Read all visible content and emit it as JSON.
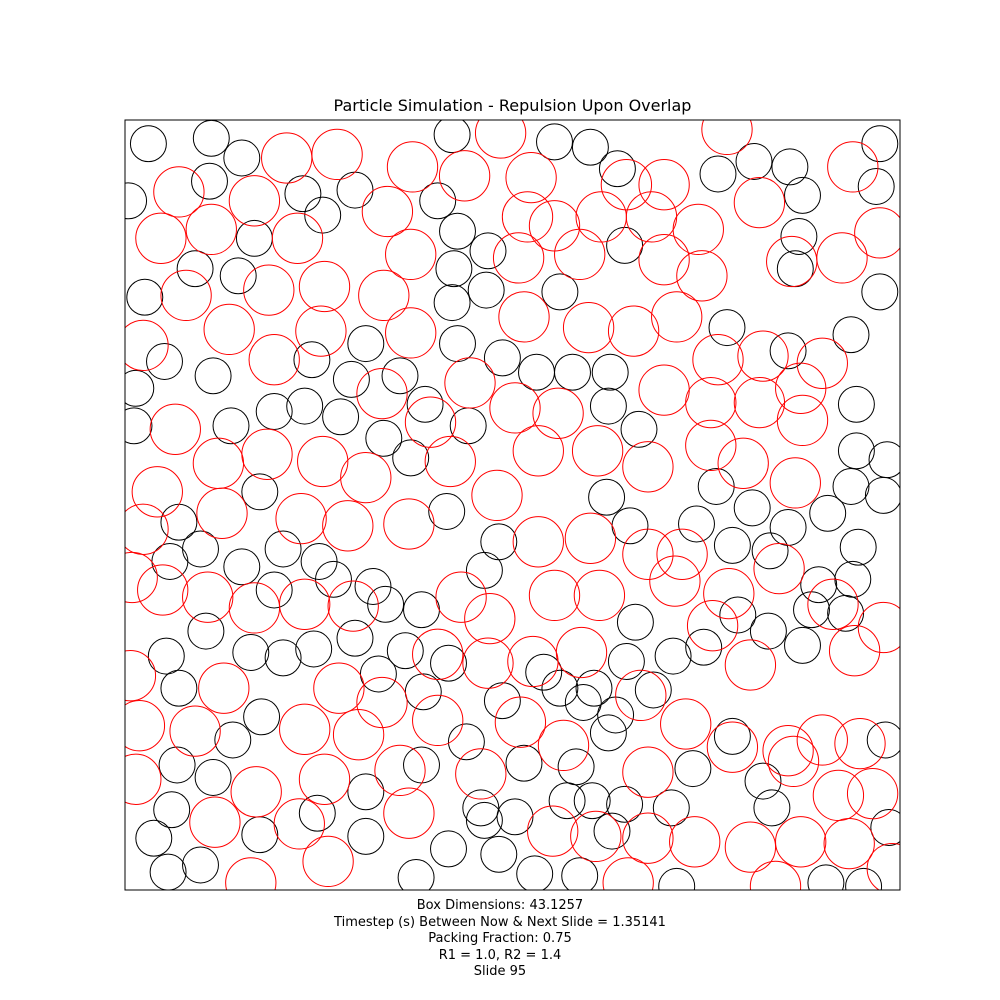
{
  "title": "Particle Simulation - Repulsion Upon Overlap",
  "caption": {
    "box_dimensions": "Box Dimensions: 43.1257",
    "timestep": "Timestep (s) Between Now & Next Slide = 1.35141",
    "packing_fraction": "Packing Fraction: 0.75",
    "radii": "R1 = 1.0, R2 = 1.4",
    "slide": "Slide 95"
  },
  "colors": {
    "small": "#000000",
    "large": "#ff0000",
    "frame": "#000000"
  },
  "chart_data": {
    "type": "scatter",
    "title": "Particle Simulation - Repulsion Upon Overlap",
    "xlim": [
      0,
      43.1257
    ],
    "ylim": [
      0,
      43.1257
    ],
    "grid": false,
    "series": [
      {
        "name": "R1 = 1.0",
        "radius": 1.0,
        "points": [
          [
            1.3,
            41.8
          ],
          [
            4.8,
            42.1
          ],
          [
            6.5,
            41.0
          ],
          [
            18.2,
            42.3
          ],
          [
            23.9,
            41.9
          ],
          [
            25.9,
            41.6
          ],
          [
            4.7,
            39.7
          ],
          [
            9.9,
            39.0
          ],
          [
            12.8,
            39.2
          ],
          [
            27.4,
            40.4
          ],
          [
            33.0,
            40.1
          ],
          [
            35.0,
            40.8
          ],
          [
            37.0,
            40.5
          ],
          [
            42.0,
            41.8
          ],
          [
            0.2,
            38.6
          ],
          [
            11.0,
            37.8
          ],
          [
            17.4,
            38.6
          ],
          [
            37.7,
            38.9
          ],
          [
            41.8,
            39.4
          ],
          [
            7.2,
            36.5
          ],
          [
            18.5,
            36.9
          ],
          [
            20.2,
            35.8
          ],
          [
            27.8,
            36.1
          ],
          [
            37.5,
            36.6
          ],
          [
            3.9,
            34.8
          ],
          [
            6.3,
            34.4
          ],
          [
            18.3,
            34.8
          ],
          [
            20.1,
            33.6
          ],
          [
            37.3,
            34.8
          ],
          [
            1.1,
            33.2
          ],
          [
            18.2,
            32.9
          ],
          [
            24.2,
            33.5
          ],
          [
            42.0,
            33.5
          ],
          [
            33.5,
            31.5
          ],
          [
            40.4,
            31.1
          ],
          [
            13.4,
            30.6
          ],
          [
            18.5,
            30.6
          ],
          [
            2.2,
            29.6
          ],
          [
            4.9,
            28.8
          ],
          [
            10.4,
            29.7
          ],
          [
            21.0,
            29.8
          ],
          [
            22.9,
            29.0
          ],
          [
            24.9,
            29.0
          ],
          [
            27.0,
            29.0
          ],
          [
            36.9,
            30.2
          ],
          [
            0.6,
            28.1
          ],
          [
            12.6,
            28.6
          ],
          [
            15.3,
            28.8
          ],
          [
            16.7,
            27.2
          ],
          [
            8.3,
            26.8
          ],
          [
            10.0,
            27.1
          ],
          [
            12.0,
            26.5
          ],
          [
            0.5,
            26.0
          ],
          [
            5.9,
            26.0
          ],
          [
            26.9,
            27.1
          ],
          [
            19.1,
            26.0
          ],
          [
            28.6,
            25.8
          ],
          [
            40.7,
            27.2
          ],
          [
            14.4,
            25.3
          ],
          [
            15.9,
            24.2
          ],
          [
            40.7,
            24.6
          ],
          [
            42.4,
            24.1
          ],
          [
            32.9,
            22.6
          ],
          [
            7.5,
            22.3
          ],
          [
            26.8,
            22.0
          ],
          [
            40.4,
            22.6
          ],
          [
            42.2,
            22.1
          ],
          [
            17.9,
            21.2
          ],
          [
            34.9,
            21.4
          ],
          [
            3.0,
            20.6
          ],
          [
            31.8,
            20.5
          ],
          [
            20.8,
            19.5
          ],
          [
            28.1,
            20.4
          ],
          [
            36.9,
            20.3
          ],
          [
            39.1,
            21.1
          ],
          [
            8.8,
            19.1
          ],
          [
            4.2,
            19.1
          ],
          [
            10.8,
            18.4
          ],
          [
            6.5,
            18.1
          ],
          [
            33.8,
            19.3
          ],
          [
            35.9,
            19.0
          ],
          [
            40.8,
            19.2
          ],
          [
            2.5,
            18.4
          ],
          [
            8.3,
            16.8
          ],
          [
            11.6,
            17.4
          ],
          [
            13.8,
            17.0
          ],
          [
            14.5,
            16.0
          ],
          [
            16.5,
            15.7
          ],
          [
            20.0,
            17.9
          ],
          [
            38.6,
            17.1
          ],
          [
            40.5,
            17.4
          ],
          [
            4.5,
            14.5
          ],
          [
            7.0,
            13.3
          ],
          [
            10.5,
            13.5
          ],
          [
            12.8,
            14.1
          ],
          [
            15.6,
            13.4
          ],
          [
            28.4,
            15.0
          ],
          [
            34.1,
            15.4
          ],
          [
            38.2,
            15.7
          ],
          [
            40.1,
            15.5
          ],
          [
            2.3,
            13.1
          ],
          [
            8.8,
            13.0
          ],
          [
            14.1,
            12.1
          ],
          [
            18.0,
            12.7
          ],
          [
            23.3,
            12.2
          ],
          [
            27.9,
            12.8
          ],
          [
            30.5,
            13.1
          ],
          [
            32.2,
            13.6
          ],
          [
            35.8,
            14.5
          ],
          [
            37.7,
            13.7
          ],
          [
            16.6,
            11.1
          ],
          [
            29.4,
            11.2
          ],
          [
            3.0,
            11.3
          ],
          [
            21.0,
            10.6
          ],
          [
            24.2,
            11.3
          ],
          [
            26.1,
            11.3
          ],
          [
            27.3,
            9.8
          ],
          [
            25.5,
            10.5
          ],
          [
            7.6,
            9.7
          ],
          [
            6.0,
            8.4
          ],
          [
            26.9,
            8.8
          ],
          [
            33.8,
            8.6
          ],
          [
            42.3,
            8.4
          ],
          [
            19.0,
            8.3
          ],
          [
            2.9,
            7.0
          ],
          [
            4.9,
            6.3
          ],
          [
            16.5,
            7.0
          ],
          [
            22.2,
            7.1
          ],
          [
            25.1,
            6.9
          ],
          [
            31.6,
            6.8
          ],
          [
            13.4,
            5.5
          ],
          [
            26.0,
            5.0
          ],
          [
            24.6,
            5.0
          ],
          [
            35.5,
            6.1
          ],
          [
            19.8,
            4.6
          ],
          [
            21.7,
            4.1
          ],
          [
            27.8,
            4.8
          ],
          [
            30.4,
            4.6
          ],
          [
            2.6,
            4.5
          ],
          [
            10.7,
            4.3
          ],
          [
            13.4,
            3.0
          ],
          [
            7.5,
            3.1
          ],
          [
            20.0,
            3.9
          ],
          [
            27.1,
            3.3
          ],
          [
            36.0,
            4.6
          ],
          [
            1.6,
            2.9
          ],
          [
            18.0,
            2.3
          ],
          [
            20.8,
            2.0
          ],
          [
            42.5,
            3.5
          ],
          [
            2.4,
            1.0
          ],
          [
            4.2,
            1.4
          ],
          [
            16.2,
            0.7
          ],
          [
            22.8,
            0.9
          ],
          [
            25.3,
            0.8
          ],
          [
            30.7,
            0.2
          ],
          [
            39.0,
            0.4
          ],
          [
            41.1,
            0.2
          ]
        ]
      },
      {
        "name": "R2 = 1.4",
        "radius": 1.4,
        "points": [
          [
            9.0,
            41.0
          ],
          [
            11.8,
            41.2
          ],
          [
            16.0,
            40.5
          ],
          [
            20.9,
            42.4
          ],
          [
            33.5,
            42.6
          ],
          [
            3.0,
            39.1
          ],
          [
            7.2,
            38.6
          ],
          [
            14.6,
            38.0
          ],
          [
            18.9,
            40.0
          ],
          [
            22.6,
            39.9
          ],
          [
            27.9,
            39.5
          ],
          [
            30.0,
            39.5
          ],
          [
            35.3,
            38.5
          ],
          [
            40.5,
            40.5
          ],
          [
            2.0,
            36.5
          ],
          [
            4.8,
            37.0
          ],
          [
            9.6,
            36.5
          ],
          [
            15.9,
            35.6
          ],
          [
            22.4,
            37.7
          ],
          [
            23.9,
            37.2
          ],
          [
            26.5,
            37.7
          ],
          [
            29.3,
            37.7
          ],
          [
            31.9,
            37.0
          ],
          [
            3.4,
            33.3
          ],
          [
            8.0,
            33.6
          ],
          [
            11.1,
            33.8
          ],
          [
            14.4,
            33.3
          ],
          [
            21.9,
            35.4
          ],
          [
            25.3,
            35.6
          ],
          [
            30.0,
            35.3
          ],
          [
            32.1,
            34.4
          ],
          [
            37.1,
            35.2
          ],
          [
            39.9,
            35.4
          ],
          [
            42.0,
            36.8
          ],
          [
            5.8,
            31.4
          ],
          [
            8.3,
            29.7
          ],
          [
            10.9,
            31.3
          ],
          [
            15.9,
            31.2
          ],
          [
            22.2,
            32.1
          ],
          [
            25.8,
            31.5
          ],
          [
            28.3,
            31.3
          ],
          [
            30.7,
            32.1
          ],
          [
            33.0,
            29.7
          ],
          [
            35.5,
            29.9
          ],
          [
            38.8,
            29.5
          ],
          [
            1.0,
            30.5
          ],
          [
            14.3,
            27.8
          ],
          [
            19.2,
            28.4
          ],
          [
            30.0,
            28.0
          ],
          [
            32.6,
            27.3
          ],
          [
            35.3,
            27.3
          ],
          [
            37.6,
            28.1
          ],
          [
            2.8,
            25.8
          ],
          [
            17.0,
            26.2
          ],
          [
            21.7,
            27.0
          ],
          [
            24.1,
            26.7
          ],
          [
            32.6,
            24.9
          ],
          [
            37.7,
            26.3
          ],
          [
            1.8,
            22.3
          ],
          [
            5.2,
            23.9
          ],
          [
            7.9,
            24.4
          ],
          [
            11.0,
            24.0
          ],
          [
            13.4,
            23.1
          ],
          [
            18.1,
            24.0
          ],
          [
            20.7,
            22.1
          ],
          [
            23.0,
            24.6
          ],
          [
            26.3,
            24.6
          ],
          [
            29.1,
            23.7
          ],
          [
            34.4,
            23.9
          ],
          [
            37.3,
            22.8
          ],
          [
            1.0,
            20.2
          ],
          [
            5.4,
            21.1
          ],
          [
            9.8,
            20.8
          ],
          [
            12.4,
            20.4
          ],
          [
            15.8,
            20.5
          ],
          [
            23.0,
            19.5
          ],
          [
            25.9,
            19.7
          ],
          [
            29.1,
            18.8
          ],
          [
            31.0,
            18.8
          ],
          [
            36.4,
            18.0
          ],
          [
            0.4,
            17.5
          ],
          [
            2.1,
            16.8
          ],
          [
            4.6,
            16.4
          ],
          [
            7.2,
            15.8
          ],
          [
            10.0,
            16.0
          ],
          [
            12.7,
            15.9
          ],
          [
            18.7,
            16.4
          ],
          [
            20.3,
            15.2
          ],
          [
            23.9,
            16.5
          ],
          [
            26.4,
            16.5
          ],
          [
            30.6,
            17.3
          ],
          [
            33.6,
            16.6
          ],
          [
            39.4,
            16.0
          ],
          [
            42.2,
            14.7
          ],
          [
            0.3,
            12.0
          ],
          [
            5.5,
            11.3
          ],
          [
            11.9,
            11.3
          ],
          [
            14.3,
            10.5
          ],
          [
            17.4,
            13.2
          ],
          [
            20.2,
            12.7
          ],
          [
            22.7,
            12.8
          ],
          [
            25.4,
            13.3
          ],
          [
            32.7,
            14.8
          ],
          [
            34.8,
            12.6
          ],
          [
            40.6,
            13.4
          ],
          [
            0.8,
            9.2
          ],
          [
            3.9,
            8.9
          ],
          [
            10.0,
            9.0
          ],
          [
            13.0,
            8.7
          ],
          [
            17.4,
            9.5
          ],
          [
            22.0,
            9.4
          ],
          [
            24.4,
            8.1
          ],
          [
            28.7,
            10.9
          ],
          [
            31.2,
            9.3
          ],
          [
            33.8,
            8.0
          ],
          [
            36.9,
            7.8
          ],
          [
            38.8,
            8.4
          ],
          [
            40.9,
            8.2
          ],
          [
            0.6,
            6.2
          ],
          [
            7.3,
            5.5
          ],
          [
            11.1,
            6.2
          ],
          [
            15.3,
            6.7
          ],
          [
            19.8,
            6.5
          ],
          [
            29.1,
            6.6
          ],
          [
            37.2,
            7.2
          ],
          [
            39.7,
            5.3
          ],
          [
            41.6,
            5.4
          ],
          [
            5.0,
            3.8
          ],
          [
            9.7,
            3.7
          ],
          [
            15.8,
            4.3
          ],
          [
            23.8,
            3.3
          ],
          [
            26.2,
            3.0
          ],
          [
            29.1,
            2.9
          ],
          [
            31.7,
            2.7
          ],
          [
            34.8,
            2.4
          ],
          [
            37.6,
            2.7
          ],
          [
            40.3,
            2.6
          ],
          [
            42.7,
            1.2
          ],
          [
            11.3,
            1.6
          ],
          [
            7.0,
            0.4
          ],
          [
            28.0,
            0.4
          ],
          [
            36.2,
            0.2
          ]
        ]
      }
    ]
  }
}
